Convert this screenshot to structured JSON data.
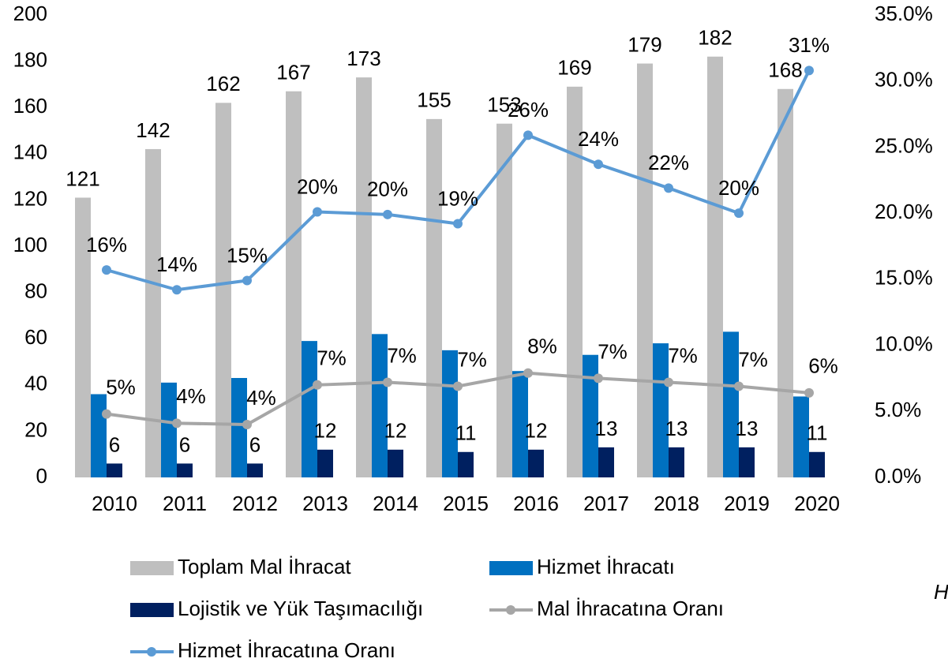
{
  "chart_data": {
    "type": "bar-line",
    "categories": [
      "2010",
      "2011",
      "2012",
      "2013",
      "2014",
      "2015",
      "2016",
      "2017",
      "2018",
      "2019",
      "2020"
    ],
    "series": [
      {
        "name": "Toplam Mal İhracat",
        "color": "#bfbfbf",
        "kind": "bar",
        "values": [
          121,
          142,
          162,
          167,
          173,
          155,
          153,
          169,
          179,
          182,
          168
        ]
      },
      {
        "name": "Hizmet İhracatı",
        "color": "#0070c0",
        "kind": "bar",
        "values": [
          36,
          41,
          43,
          59,
          62,
          55,
          46,
          53,
          58,
          63,
          35
        ]
      },
      {
        "name": "Lojistik ve Yük Taşımacılığı",
        "color": "#002060",
        "kind": "bar",
        "values": [
          6,
          6,
          6,
          12,
          12,
          11,
          12,
          13,
          13,
          13,
          11
        ]
      },
      {
        "name": "Mal İhracatına Oranı",
        "color": "#a6a6a6",
        "kind": "line",
        "axis": "y2",
        "values": [
          4.8,
          4.1,
          4.0,
          7.0,
          7.2,
          6.9,
          7.9,
          7.5,
          7.2,
          6.9,
          6.4
        ],
        "value_labels": [
          "5%",
          "4%",
          "4%",
          "7%",
          "7%",
          "7%",
          "8%",
          "7%",
          "7%",
          "7%",
          "6%"
        ]
      },
      {
        "name": "Hizmet İhracatına Oranı",
        "color": "#5b9bd5",
        "kind": "line",
        "axis": "y2",
        "values": [
          15.7,
          14.2,
          14.9,
          20.1,
          19.9,
          19.2,
          25.9,
          23.7,
          21.9,
          20.0,
          30.8
        ],
        "value_labels": [
          "16%",
          "14%",
          "15%",
          "20%",
          "20%",
          "19%",
          "26%",
          "24%",
          "22%",
          "20%",
          "31%"
        ]
      }
    ],
    "ylim": [
      0,
      200
    ],
    "yticks": [
      0,
      20,
      40,
      60,
      80,
      100,
      120,
      140,
      160,
      180,
      200
    ],
    "y2lim": [
      0,
      35
    ],
    "y2ticks": [
      {
        "value": 0,
        "label": "0.0%"
      },
      {
        "value": 5,
        "label": "5.0%"
      },
      {
        "value": 10,
        "label": "10.0%"
      },
      {
        "value": 15,
        "label": "15.0%"
      },
      {
        "value": 20,
        "label": "20.0%"
      },
      {
        "value": 25,
        "label": "25.0%"
      },
      {
        "value": 30,
        "label": "30.0%"
      },
      {
        "value": 35,
        "label": "35.0%"
      }
    ],
    "annotation": "H"
  }
}
